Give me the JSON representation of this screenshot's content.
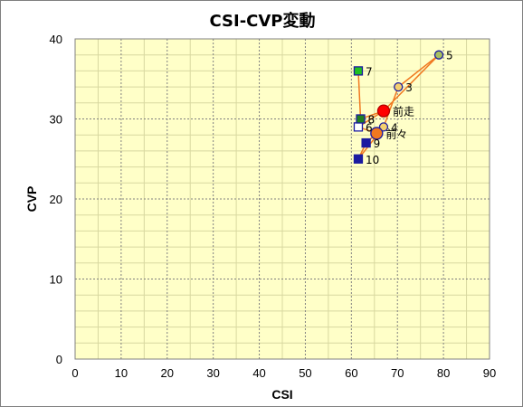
{
  "chart_data": {
    "type": "scatter",
    "title": "CSI-CVP変動",
    "xlabel": "CSI",
    "ylabel": "CVP",
    "xlim": [
      0,
      90
    ],
    "ylim": [
      0,
      40
    ],
    "x_ticks": [
      0,
      10,
      20,
      30,
      40,
      50,
      60,
      70,
      80,
      90
    ],
    "y_ticks": [
      0,
      10,
      20,
      30,
      40
    ],
    "grid": true,
    "colors": {
      "plot_bg": "#ffffc8",
      "major_grid": "#808080",
      "minor_grid": "#d8d8a0",
      "line": "#f07820"
    },
    "path_order": [
      "7",
      "8",
      "前走",
      "6",
      "前々",
      "9",
      "10",
      "4",
      "3",
      "5",
      "前走"
    ],
    "points": [
      {
        "label": "前走",
        "x": 67.0,
        "y": 31.0,
        "shape": "circle",
        "fill": "#ff0000",
        "stroke": "#b00000",
        "size": "large"
      },
      {
        "label": "前々",
        "x": 65.5,
        "y": 28.2,
        "shape": "circle",
        "fill": "#f07820",
        "stroke": "#1a1aa0",
        "size": "large"
      },
      {
        "label": "3",
        "x": 70.2,
        "y": 34.0,
        "shape": "circle",
        "fill": "#f4d070",
        "stroke": "#1a1aa0",
        "size": "small"
      },
      {
        "label": "4",
        "x": 67.0,
        "y": 29.0,
        "shape": "circle",
        "fill": "#f4d070",
        "stroke": "#1a1aa0",
        "size": "small"
      },
      {
        "label": "5",
        "x": 79.0,
        "y": 38.0,
        "shape": "circle",
        "fill": "#a8c060",
        "stroke": "#1a1aa0",
        "size": "small"
      },
      {
        "label": "6",
        "x": 61.5,
        "y": 29.0,
        "shape": "square",
        "fill": "#ffffff",
        "stroke": "#1a1aa0",
        "size": "small"
      },
      {
        "label": "7",
        "x": 61.5,
        "y": 36.0,
        "shape": "square",
        "fill": "#20c020",
        "stroke": "#1a1aa0",
        "size": "small"
      },
      {
        "label": "8",
        "x": 62.0,
        "y": 30.0,
        "shape": "square",
        "fill": "#208020",
        "stroke": "#1a1aa0",
        "size": "small"
      },
      {
        "label": "9",
        "x": 63.2,
        "y": 27.0,
        "shape": "square",
        "fill": "#1a1aa0",
        "stroke": "#1a1aa0",
        "size": "small"
      },
      {
        "label": "10",
        "x": 61.5,
        "y": 25.0,
        "shape": "square",
        "fill": "#1a1aa0",
        "stroke": "#1a1aa0",
        "size": "small"
      }
    ]
  }
}
